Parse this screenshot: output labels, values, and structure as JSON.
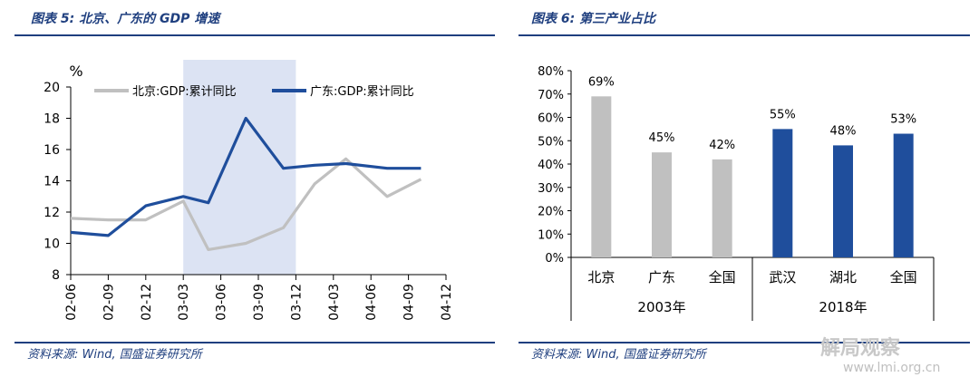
{
  "left_panel": {
    "title": "图表 5:  北京、广东的 GDP 增速",
    "source": "资料来源:  Wind,  国盛证券研究所"
  },
  "right_panel": {
    "title": "图表 6:  第三产业占比",
    "source": "资料来源:  Wind,  国盛证券研究所"
  },
  "watermark": {
    "text": "解局观察",
    "url": "www.lmi.org.cn"
  },
  "colors": {
    "gray": "#c0c0c0",
    "navy": "#1f4e9c",
    "highlight": "#dce3f3",
    "title_blue": "#1f3f7f"
  },
  "chart_data": [
    {
      "type": "line",
      "ylabel": "%",
      "ylim": [
        8,
        20
      ],
      "yticks": [
        8,
        10,
        12,
        14,
        16,
        18,
        20
      ],
      "x": [
        "02-06",
        "02-09",
        "02-12",
        "03-03",
        "03-06",
        "03-09",
        "03-12",
        "04-03",
        "04-06",
        "04-09",
        "04-12"
      ],
      "x_index": [
        0,
        3,
        6,
        9,
        12,
        15,
        18,
        21,
        24,
        27,
        30
      ],
      "highlight_range": [
        "03-03",
        "03-12"
      ],
      "legend_position": "top",
      "series": [
        {
          "name": "北京:GDP:累计同比",
          "color": "#c0c0c0",
          "points": [
            [
              0,
              11.6
            ],
            [
              3,
              11.5
            ],
            [
              6,
              11.5
            ],
            [
              9,
              12.7
            ],
            [
              11,
              9.6
            ],
            [
              14,
              10.0
            ],
            [
              17,
              11.0
            ],
            [
              19.5,
              13.8
            ],
            [
              22,
              15.4
            ],
            [
              25.3,
              13.0
            ],
            [
              28,
              14.1
            ]
          ]
        },
        {
          "name": "广东:GDP:累计同比",
          "color": "#1f4e9c",
          "points": [
            [
              0,
              10.7
            ],
            [
              3,
              10.5
            ],
            [
              6,
              12.4
            ],
            [
              9,
              13.0
            ],
            [
              11,
              12.6
            ],
            [
              14,
              18.0
            ],
            [
              17,
              14.8
            ],
            [
              19.5,
              15.0
            ],
            [
              22,
              15.1
            ],
            [
              25.3,
              14.8
            ],
            [
              28,
              14.8
            ]
          ]
        }
      ]
    },
    {
      "type": "bar",
      "ylim": [
        0,
        80
      ],
      "yticks": [
        "0%",
        "10%",
        "20%",
        "30%",
        "40%",
        "50%",
        "60%",
        "70%",
        "80%"
      ],
      "categories": [
        "北京",
        "广东",
        "全国",
        "武汉",
        "湖北",
        "全国"
      ],
      "groups": [
        {
          "label": "2003年",
          "span": [
            0,
            2
          ]
        },
        {
          "label": "2018年",
          "span": [
            3,
            5
          ]
        }
      ],
      "values": [
        69,
        45,
        42,
        55,
        48,
        53
      ],
      "data_labels": [
        "69%",
        "45%",
        "42%",
        "55%",
        "48%",
        "53%"
      ],
      "bar_colors": [
        "#c0c0c0",
        "#c0c0c0",
        "#c0c0c0",
        "#1f4e9c",
        "#1f4e9c",
        "#1f4e9c"
      ]
    }
  ]
}
